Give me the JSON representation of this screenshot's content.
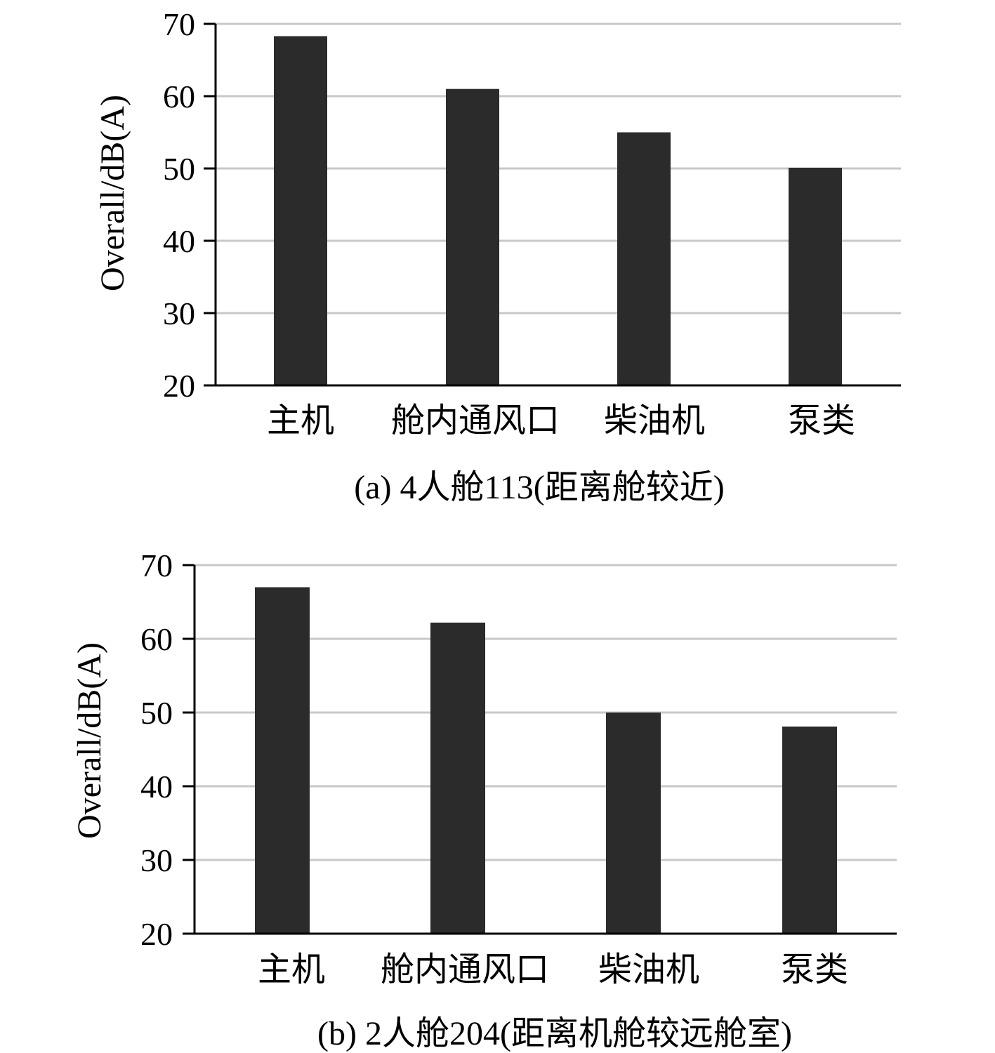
{
  "chart_data": [
    {
      "type": "bar",
      "caption": "(a) 4人舱113(距离舱较近)",
      "ylabel": "Overall/dB(A)",
      "xlabel": "",
      "categories": [
        "主机",
        "舱内通风口",
        "柴油机",
        "泵类"
      ],
      "values": [
        68.3,
        61,
        55,
        50.1
      ],
      "ylim": [
        20,
        70
      ],
      "yticks": [
        20,
        30,
        40,
        50,
        60,
        70
      ],
      "grid": true,
      "bar_color": "#2b2b2b"
    },
    {
      "type": "bar",
      "caption": "(b) 2人舱204(距离机舱较远舱室)",
      "ylabel": "Overall/dB(A)",
      "xlabel": "",
      "categories": [
        "主机",
        "舱内通风口",
        "柴油机",
        "泵类"
      ],
      "values": [
        67,
        62.2,
        50,
        48.1
      ],
      "ylim": [
        20,
        70
      ],
      "yticks": [
        20,
        30,
        40,
        50,
        60,
        70
      ],
      "grid": true,
      "bar_color": "#2b2b2b"
    }
  ]
}
